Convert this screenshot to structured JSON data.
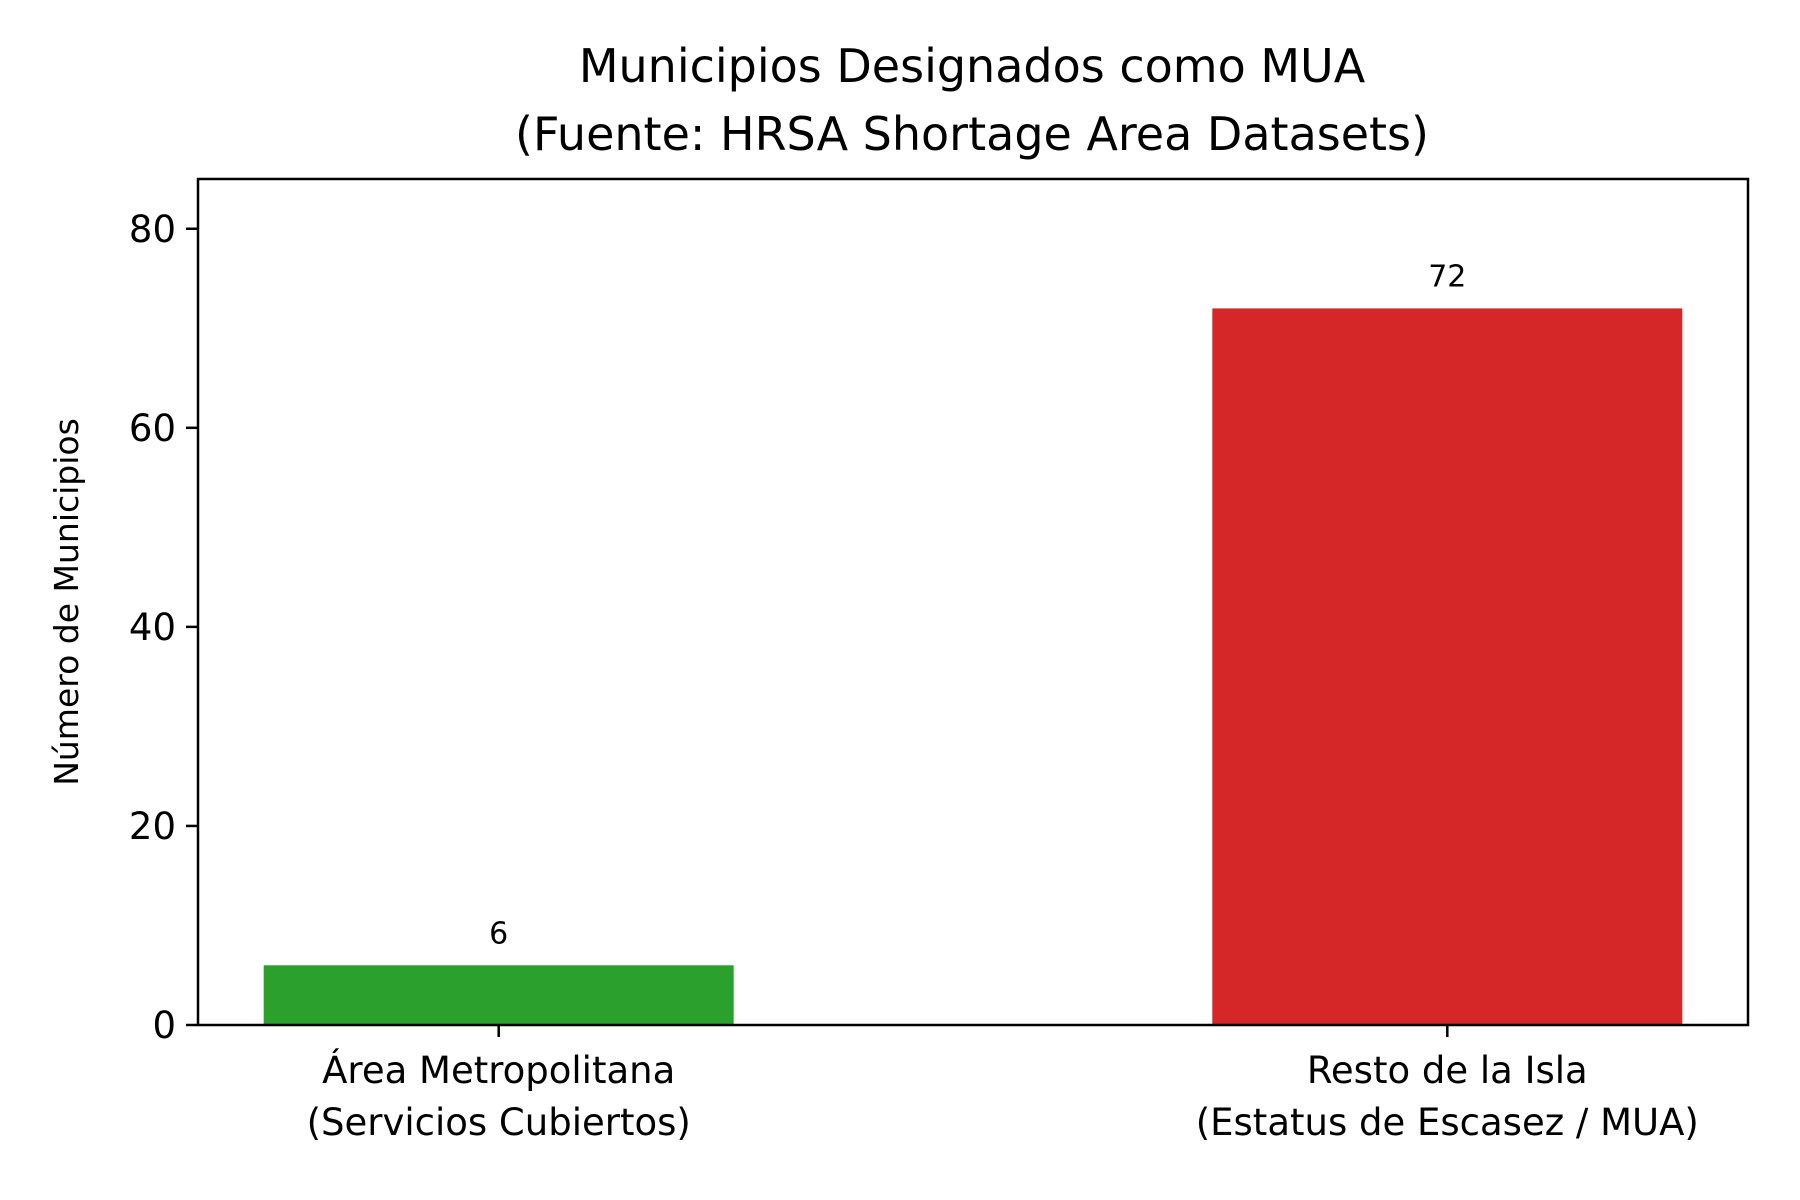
{
  "chart_data": {
    "type": "bar",
    "title": "Municipios Designados como MUA",
    "subtitle": "(Fuente: HRSA Shortage Area Datasets)",
    "xlabel": "",
    "ylabel": "Número de Municipios",
    "ylim": [
      0,
      85
    ],
    "yticks": [
      0,
      20,
      40,
      60,
      80
    ],
    "ytick_labels": [
      "0",
      "20",
      "40",
      "60",
      "80"
    ],
    "categories": [
      {
        "line1": "Área Metropolitana",
        "line2": "(Servicios Cubiertos)"
      },
      {
        "line1": "Resto de la Isla",
        "line2": "(Estatus de Escasez / MUA)"
      }
    ],
    "values": [
      6,
      72
    ],
    "value_labels": [
      "6",
      "72"
    ],
    "colors": [
      "#2ca02c",
      "#d62728"
    ],
    "grid": false,
    "legend": "none"
  }
}
